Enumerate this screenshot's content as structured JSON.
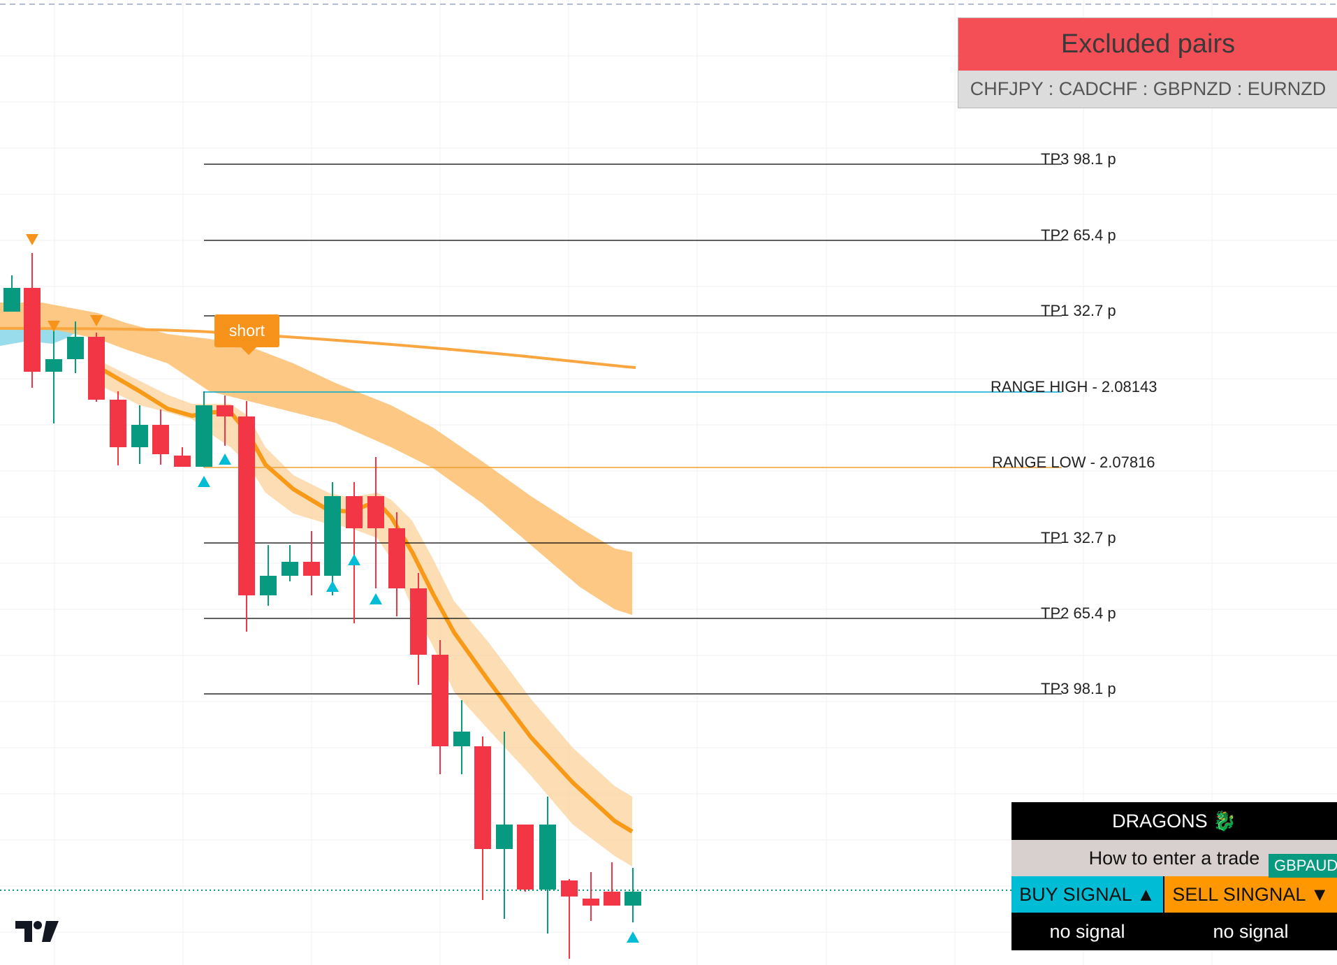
{
  "excluded": {
    "title": "Excluded pairs",
    "pairs": "CHFJPY : CADCHF : GBPNZD : EURNZD"
  },
  "levels": [
    {
      "label": "TP3 98.1 p",
      "color": "#000000"
    },
    {
      "label": "TP2 65.4 p",
      "color": "#000000"
    },
    {
      "label": "TP1 32.7 p",
      "color": "#000000"
    },
    {
      "label": "RANGE HIGH - 2.08143",
      "color": "#00a8cf"
    },
    {
      "label": "RANGE LOW - 2.07816",
      "color": "#f0a030"
    },
    {
      "label": "TP1 32.7 p",
      "color": "#000000"
    },
    {
      "label": "TP2 65.4 p",
      "color": "#000000"
    },
    {
      "label": "TP3 98.1 p",
      "color": "#000000"
    }
  ],
  "marker": {
    "label": "short"
  },
  "dragons": {
    "title": "DRAGONS 🐉",
    "how_to": "How to enter a trade",
    "buy_header": "BUY SIGNAL ▲",
    "sell_header": "SELL SINGNAL ▼",
    "buy_value": "no signal",
    "sell_value": "no signal"
  },
  "ticker_badge": "GBPAUD",
  "logo": "tradingview-logo",
  "colors": {
    "bull": "#089981",
    "bear": "#f23645",
    "accent_orange": "#f7931a",
    "band_orange": "#fcc277",
    "signal_cyan": "#00bcd4",
    "excluded_red": "#f44f56"
  }
}
